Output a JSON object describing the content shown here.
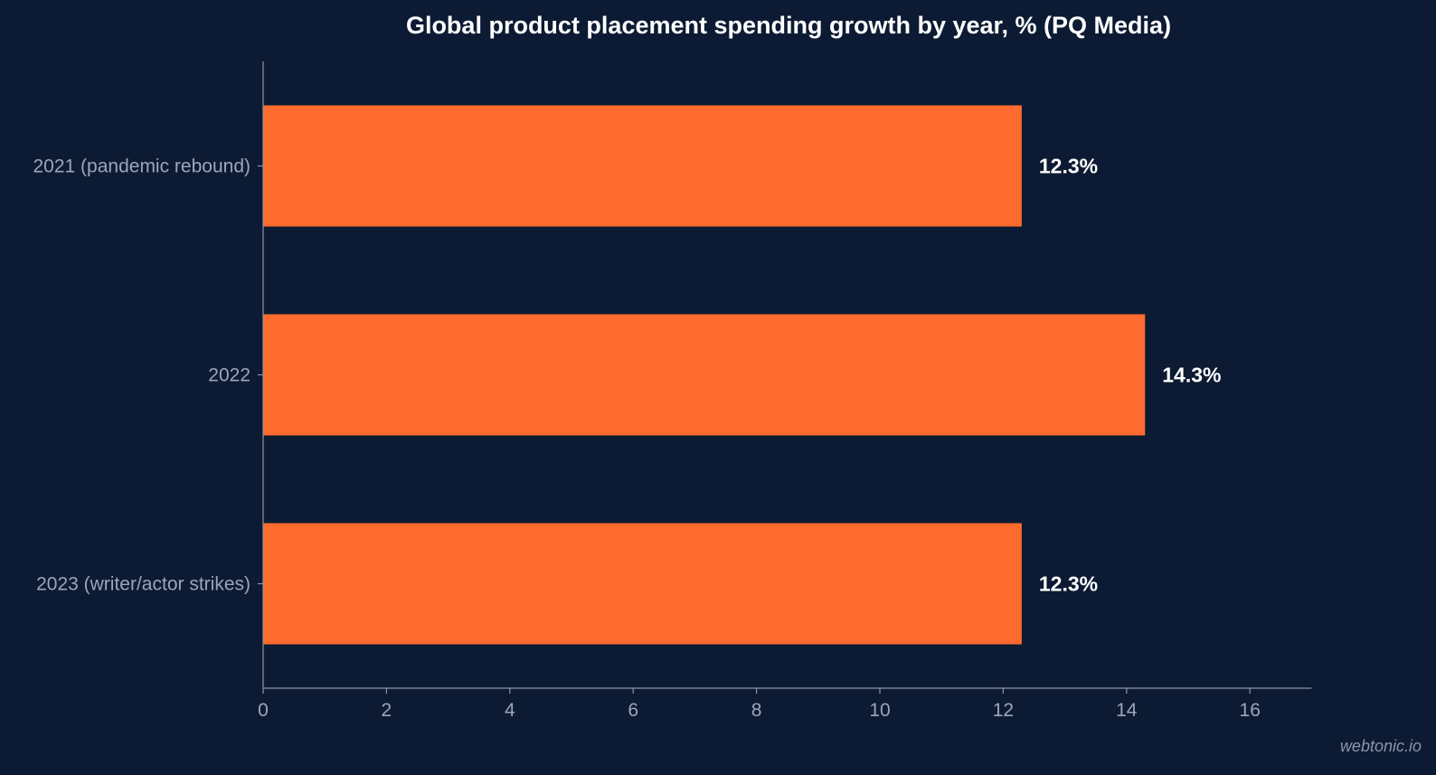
{
  "chart_data": {
    "type": "bar",
    "orientation": "horizontal",
    "title": "Global product placement spending growth by year, %  (PQ Media)",
    "categories": [
      "2021 (pandemic rebound)",
      "2022",
      "2023 (writer/actor strikes)"
    ],
    "values": [
      12.3,
      14.3,
      12.3
    ],
    "value_labels": [
      "12.3%",
      "14.3%",
      "12.3%"
    ],
    "xlabel": "",
    "ylabel": "",
    "xlim": [
      0,
      17
    ],
    "xticks": [
      0,
      2,
      4,
      6,
      8,
      10,
      12,
      14,
      16
    ],
    "grid": false,
    "legend": "none",
    "colors": {
      "background": "#0c1b33",
      "bar": "#ff6b2f",
      "axis": "#8a96a8",
      "text": "#ffffff",
      "tick_text": "#9aa6b8"
    }
  },
  "watermark": "webtonic.io"
}
